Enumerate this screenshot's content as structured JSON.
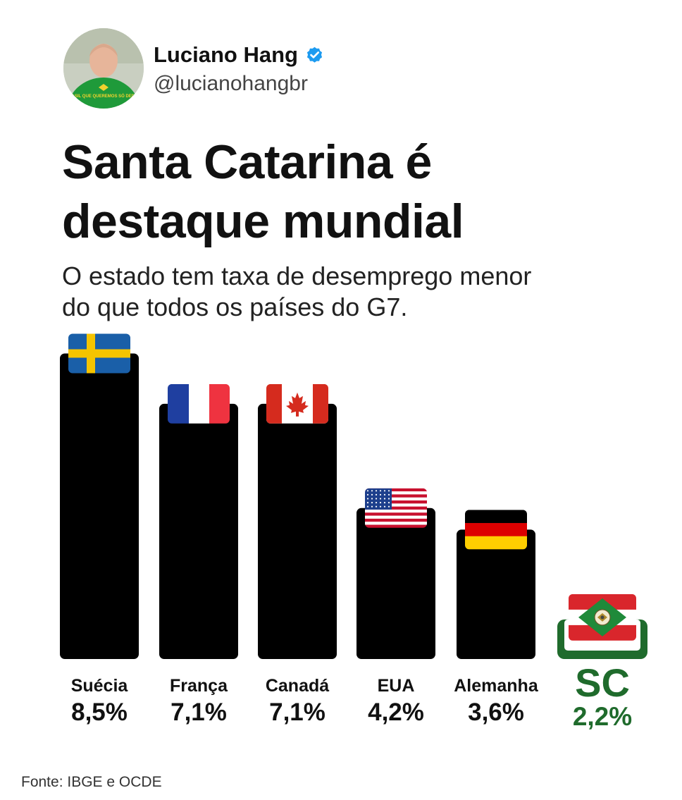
{
  "post": {
    "author_name": "Luciano Hang",
    "handle": "@lucianohangbr",
    "avatar_shirt_text": "O BRASIL QUE QUEREMOS SÓ DEPENDE",
    "title_line1": "Santa Catarina é",
    "title_line2": "destaque mundial",
    "subtitle_line1": "O estado tem taxa de desemprego menor",
    "subtitle_line2": "do que todos os países do G7.",
    "source": "Fonte: IBGE e OCDE"
  },
  "colors": {
    "bar": "#000000",
    "highlight": "#1f6b2c",
    "verified": "#1d9bf0"
  },
  "chart_data": {
    "type": "bar",
    "categories": [
      "Suécia",
      "França",
      "Canadá",
      "EUA",
      "Alemanha",
      "SC"
    ],
    "values": [
      8.5,
      7.1,
      7.1,
      4.2,
      3.6,
      2.2
    ],
    "value_labels": [
      "8,5%",
      "7,1%",
      "7,1%",
      "4,2%",
      "3,6%",
      "2,2%"
    ],
    "flags": [
      "sweden-flag-icon",
      "france-flag-icon",
      "canada-flag-icon",
      "usa-flag-icon",
      "germany-flag-icon",
      "santa-catarina-flag-icon"
    ],
    "highlight_category": "SC",
    "title": "",
    "xlabel": "",
    "ylabel": "",
    "grid": false,
    "legend": "none"
  }
}
